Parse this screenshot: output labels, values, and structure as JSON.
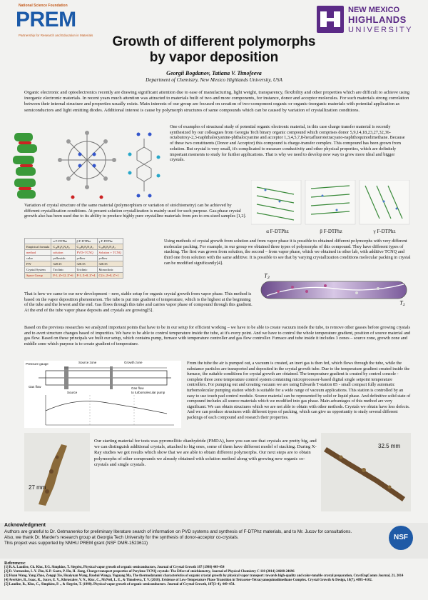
{
  "prem": {
    "top_text": "National Science Foundation",
    "word": "PREM",
    "sub_text": "Partnership for Research and Education in Materials"
  },
  "nmhu": {
    "line1": "NEW MEXICO",
    "line2": "HIGHLANDS",
    "line3": "UNIVERSITY"
  },
  "title": {
    "line1": "Growth of different polymorphs",
    "line2": "by vapor deposition"
  },
  "authors": "Georgii Bogdanov, Tatiana V. Timofeeva",
  "affiliation": "Department of Chemistry, New Mexico Highlands University, USA",
  "intro": "Organic electronic and optoelectronics recently are drawing significant attention due to ease of manufacturing, light weight, transparency, flexibility and other properties which are difficult to achieve using inorganic electronic materials. In recent years much attention was attracted to materials built of two and more components, for instance, donor and acceptor molecules. For such materials strong correlation between their internal structure and properties usually exists. Main interests of our group are focused on creation of two-component organic or organic-inorganic materials with potential application as semiconductors and light emitting diodes. Additional interest is cause by polymorph structures of same compounds which can be caused by variation of crystallization conditions.",
  "para_example": "One of examples of structural study of potential organic electronic material, in this case charge transfer material is recently synthesized by our colleagues from Georgia Tech binary organic compound which comprises donor 5,9,14,18,23,27,32,36-octabutoxy-2,3-naphthalocyanine-phthalocyanine and acceptor 1,3,4,5,7,8-hexafluorotetracyano-naphthoquinodimethane. Because of these two constituents (Donor and Acceptor) this compound is charge-transfer complex. This compound has been grown from solution. But crystal is very small, it's complicated to measure conductivity and other physical properties, which are definitely important moments to study for further applications. That is why we need to develop new way to grow more ideal and bigger crystals.",
  "para_variation": "Variation of crystal structure of the same material (polymorphism or variation of stoichiometry) can be achieved by different crystallization conditions. At present solution crystallization is mainly used for such purpose. Gas-phase crystal growth also has been used due to its ability to produce highly pure crystalline materials from μm to cm-sized samples [1,2].",
  "poly_labels": [
    "α F-DTPhz",
    "β F-DTPhz",
    "γ F-DTPhz"
  ],
  "table": {
    "header": [
      "",
      "α F-DTPhz",
      "β F-DTPhz",
      "γ F-DTPhz"
    ],
    "rows": [
      [
        "Empirical formula",
        "C₁₈H₄F₆N₂S₂",
        "C₁₈H₄F₆N₂S₂",
        "C₁₈H₄F₆N₂S₂"
      ],
      [
        "method",
        "solution",
        "PVD+TCNQ",
        "Solution + TCNQ"
      ],
      [
        "color",
        "yellowish",
        "yellow",
        "yellow"
      ],
      [
        "FW",
        "328.35",
        "328.35",
        "328.35"
      ],
      [
        "Crystal System",
        "Triclinic",
        "Triclinic",
        "Monoclinic"
      ],
      [
        "Space Group",
        "P-1, Z=12, Z'=6",
        "P-1, Z=8, Z'=4",
        "C2/c, Z=8, Z'=1"
      ]
    ]
  },
  "para_methods": "Using methods of crystal growth from solution and from vapor phase it is possible to obtained different polymorphs with very different molecular packing. For example, in our group we obtained three types of polymorphs of this compound. They have different types of stacking. The first was grown from solution, the second – from vapor phase, which we obtained in other lab, with additive TCNQ and third one from solution with the same additive. It is possible to see that by varying crystallization conditions molecular packing in crystal can be modified significantly[4].",
  "tube_labels": {
    "t2": "T₂",
    "t1": "T₁"
  },
  "para_development": "That is how we came to our new development – new, stable setup for organic crystal growth from vapor phase. This method is based on the vapor deposition phenomenon. The tube is put into gradient of temperature, which is the highest at the beginning of the tube and the lowest and the end. Gas flows through this tube and carries vapor phase of compound through this gradient. At the end of the tube vapor phase deposits and crystals are growing[5].",
  "para_analysis": "Based on the previous researches we analyzed important points that have to be in our setup for efficient working – we have to be able to create vacuum inside the tube, to remove other gasses before growing crystals and to avert structure changes based of impurities. We have to be able to control temperature inside the tube, at it's every point. And we have to control the whole temperature gradient, position of source material and gas flow. Based on these principals we built our setup, which contains pump, furnace with temperature controller and gas flow controller. Furnace and tube inside it includes 3 zones – source zone, growth zone and middle zone which purpose is to create gradient of temperature.",
  "diagram": {
    "pressure": "Pressure gauge",
    "source_zone": "Source zone",
    "growth_zone": "Growth zone",
    "gas_flow_in": "Gas flow",
    "gas_flow_out": "Gas flow",
    "to_pump": "to turbomolecular pump",
    "source": "Source"
  },
  "para_setup": "From the tube the air is pumped out, a vacuum is created, an inert gas is then fed, which flows through the tube, while the substance particles are transported and deposited in the crystal growth tube. Due to the temperature gradient created inside the furnace, the suitable conditions for crystal growth are obtained. The temperature gradient is created by control console - complete three zone temperature control system containing microprocessor-based digital single setpoint temperature controllers. For pumping out and creating vacuum we are using Edwards T-station 85 - small compact fully automatic turbomolecular pumping station which is suitable for a wide range of vacuum applications. This station is controlled by an easy to use touch pad control module. Source material can be represented by solid or liquid phase. And definitive solid state of compound includes all source materials which we modified into gas phase. Main advantages of this method are very significant. We can obtain structures which we are not able to obtain with other methods. Crystals we obtain have less defects. And we can produce structures with different types of packing, which can give us opportunity to study several different packings of each compound and research their properties.",
  "para_start": "Our starting material for tests was pyromellitic dianhydride (PMDA), here you can see that crystals are pretty big, and we can distinguish additional crystals, attached to big ones, some of them have different model of stacking. During X-Ray studies we got results which show that we are able to obtain different polymorphs. Our next steps are to obtain polymorphs of other compounds we already obtained with solution method along with growing new organic co-crystals and single crystals.",
  "scale_left": "27 mm",
  "scale_right": "32.5 mm",
  "ack": {
    "heading": "Acknowledgment",
    "body": "Authors are grateful to Dr. Getmanenko for preliminary literature search of information on PVD systems and synthesis of F-DTPhz materials, and to Mr. Jucov for consultations. Also, we thank Dr. Marder's research group at Georgia Tech University for the synthesis of donor-acceptor co-crystals.\nThis project was supported by NMHU PREM grant (NSF DMR-1523611)",
    "nsf": "NSF"
  },
  "refs": {
    "heading": "References:",
    "items": [
      "[1] R.A. Laudise, Ch. Kloc, P.G. Simpkins, T. Siegrist, Physical vapor growth of organic semiconductors, Journal of Crystal Growth 187 (1998) 449-454",
      "[2] D. Vermeulen, L.Y. Zhu, K.P. Goetz, P. Hu, H. Jiang, Charge transport properties of Perylene-TCNQ crystals: The Effect of stoichiometry, Journal of Physical Chemistry C 118 (2014) 24688-24696",
      "[3] Huan Wang, Yang Zhao, Zengqi Xie, Huaiyuan Wang, Baohui Wanga, Yuguang Ma, The thermodynamic characteristics of organic crystal growth by physical vapor transport: towards high-quality and color-tunable crystal preparation, CrystEngComm Journal, 21, 2014",
      "[4] Averkiev, B., Isaac, R., Jucov, E. V., Khrustalev, V. N., Kloc, C., McNeil, L. E., & Timofeeva, T. V. (2018). Evidence of Low-Temperature Phase Transition in Tetracene–Tetracyanoquinodimethane Complex. Crystal Growth & Design, 18(7), 4095–4102.",
      "[5] Laudise, R., Kloc, C., Simpkins, P. ., & Siegrist, T. (1998). Physical vapor growth of organic semiconductors. Journal of Crystal Growth, 187(3–4), 449–454."
    ]
  },
  "colors": {
    "prem_blue": "#1b5aa8",
    "nmhu_purple": "#5b2a86",
    "accent_red": "#c0281c"
  }
}
